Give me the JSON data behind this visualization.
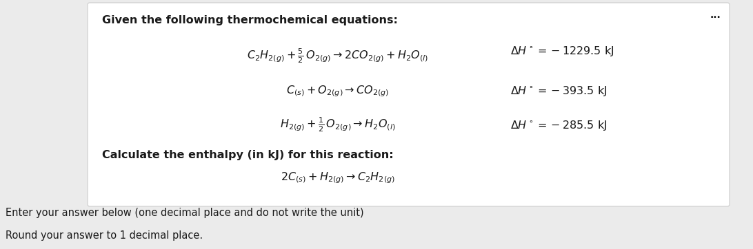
{
  "background_color": "#ebebeb",
  "content_bg": "#ffffff",
  "title": "Given the following thermochemical equations:",
  "eq1_dH": "$\\Delta H^\\circ = -1229.5\\ \\mathrm{kJ}$",
  "eq2_dH": "$\\Delta H^\\circ = -393.5\\ \\mathrm{kJ}$",
  "eq3_dH": "$\\Delta H^\\circ = -285.5\\ \\mathrm{kJ}$",
  "calc_label": "Calculate the enthalpy (in kJ) for this reaction:",
  "footer1": "Enter your answer below (one decimal place and do not write the unit)",
  "footer2": "Round your answer to 1 decimal place.",
  "dots": "...",
  "title_fontsize": 11.5,
  "eq_fontsize": 11.5,
  "footer_fontsize": 10.5,
  "text_color": "#1a1a1a",
  "gray_text": "#555555"
}
